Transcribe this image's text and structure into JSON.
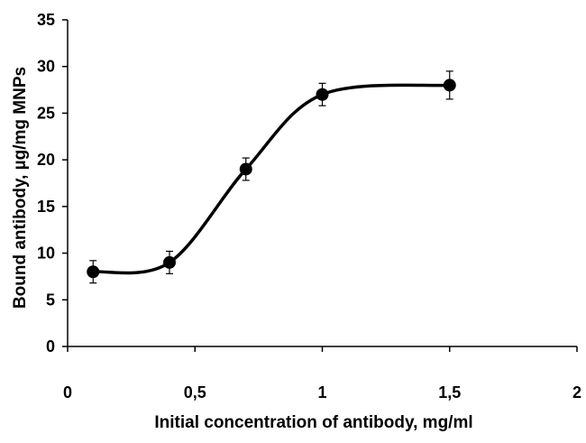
{
  "chart_data": {
    "type": "scatter",
    "title": "",
    "xlabel": "Initial concentration of antibody, mg/ml",
    "ylabel": "Bound antibody, µg/mg MNPs",
    "xlim": [
      0,
      2
    ],
    "ylim": [
      0,
      35
    ],
    "xticks": [
      "0",
      "0,5",
      "1",
      "1,5",
      "2"
    ],
    "yticks": [
      "0",
      "5",
      "10",
      "15",
      "20",
      "25",
      "30",
      "35"
    ],
    "grid": false,
    "legend": "none",
    "smooth_line": true,
    "series": [
      {
        "x": [
          0.1,
          0.4,
          0.7,
          1.0,
          1.5
        ],
        "y": [
          8,
          9,
          19,
          27,
          28
        ],
        "error": [
          1.2,
          1.2,
          1.2,
          1.2,
          1.5
        ]
      }
    ],
    "colors": {
      "line": "#000000",
      "marker": "#000000"
    }
  }
}
